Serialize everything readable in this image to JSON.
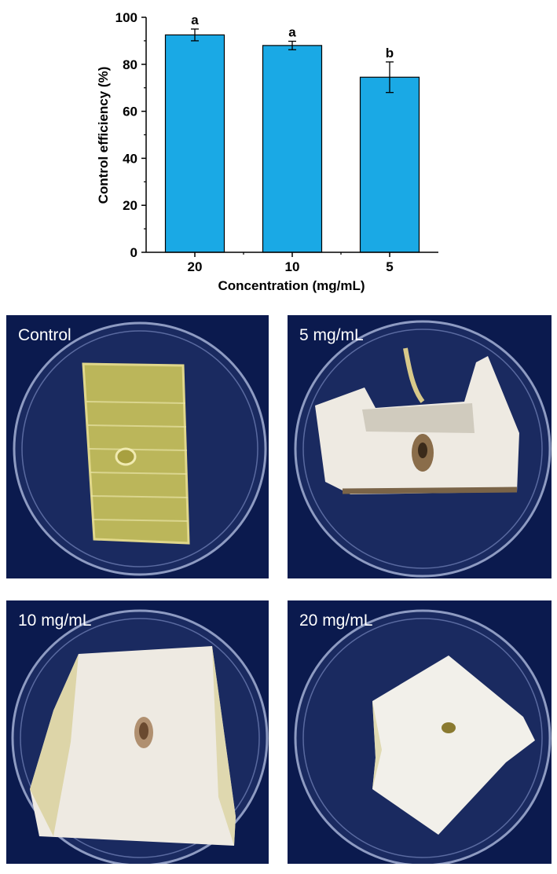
{
  "chart_data": {
    "type": "bar",
    "xlabel": "Concentration (mg/mL)",
    "ylabel": "Control efficiency (%)",
    "categories": [
      "20",
      "10",
      "5"
    ],
    "values": [
      92.5,
      88.0,
      74.5
    ],
    "errors": [
      2.5,
      1.8,
      6.5
    ],
    "significance": [
      "a",
      "a",
      "b"
    ],
    "ylim": [
      0,
      100
    ],
    "yticks": [
      "0",
      "20",
      "40",
      "60",
      "80",
      "100"
    ],
    "bar_color": "#1aa9e5",
    "grid": false,
    "legend": "none"
  },
  "photos": [
    {
      "label": "Control"
    },
    {
      "label": "5 mg/mL"
    },
    {
      "label": "10 mg/mL"
    },
    {
      "label": "20 mg/mL"
    }
  ],
  "colors": {
    "photo_background": "#0b1a4e",
    "control_tissue": "#c9c25a",
    "treated_tissue": "#eeeae2",
    "lesion": "#8a6d4a"
  }
}
